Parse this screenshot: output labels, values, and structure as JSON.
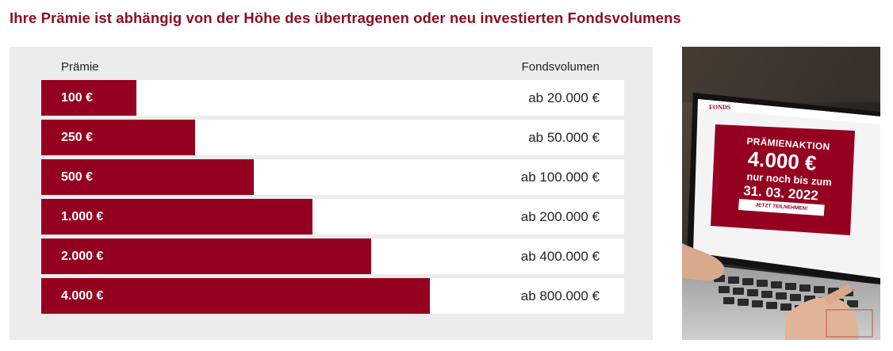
{
  "heading": "Ihre Prämie ist abhängig von der Höhe des übertragenen oder neu investierten Fondsvolumens",
  "table": {
    "col_left": "Prämie",
    "col_right": "Fondsvolumen",
    "rows": [
      {
        "bonus": "100 €",
        "volume": "ab 20.000 €",
        "share": 0.163
      },
      {
        "bonus": "250 €",
        "volume": "ab 50.000 €",
        "share": 0.264
      },
      {
        "bonus": "500 €",
        "volume": "ab 100.000 €",
        "share": 0.365
      },
      {
        "bonus": "1.000 €",
        "volume": "ab 200.000 €",
        "share": 0.465
      },
      {
        "bonus": "2.000 €",
        "volume": "ab 400.000 €",
        "share": 0.566
      },
      {
        "bonus": "4.000 €",
        "volume": "ab 800.000 €",
        "share": 0.667
      }
    ]
  },
  "promo_image": {
    "logo": "FONDS",
    "aktion": "PRÄMIENAKTION",
    "amount": "4.000 €",
    "line1": "nur noch bis zum",
    "date": "31. 03. 2022",
    "cta": "JETZT TEILNEHMEN!"
  },
  "colors": {
    "brand": "#960020",
    "heading": "#8c0d24",
    "panel": "#ececec"
  }
}
